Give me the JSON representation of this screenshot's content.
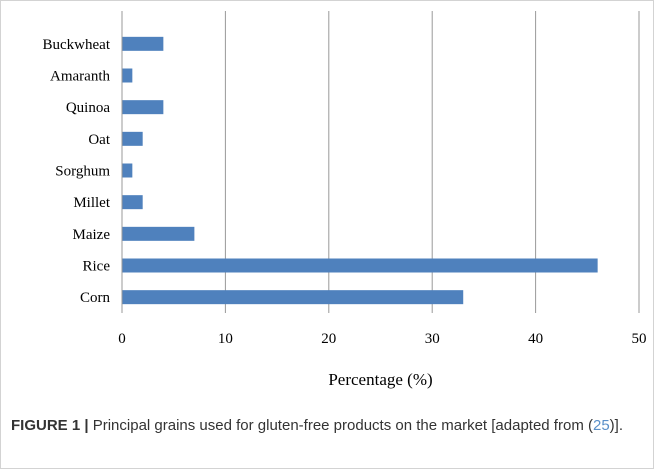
{
  "chart_data": {
    "type": "bar",
    "orientation": "horizontal",
    "categories": [
      "Buckwheat",
      "Amaranth",
      "Quinoa",
      "Oat",
      "Sorghum",
      "Millet",
      "Maize",
      "Rice",
      "Corn"
    ],
    "values": [
      4,
      1,
      4,
      2,
      1,
      2,
      7,
      46,
      33
    ],
    "xlabel": "Percentage (%)",
    "ylabel": "",
    "xlim": [
      0,
      50
    ],
    "xticks": [
      0,
      10,
      20,
      30,
      40,
      50
    ],
    "grid": "vertical",
    "bar_color": "#4f81bd"
  },
  "caption": {
    "label": "FIGURE 1 |",
    "text_before": " Principal grains used for gluten-free products on the market [adapted from (",
    "ref": "25",
    "text_after": ")]."
  }
}
